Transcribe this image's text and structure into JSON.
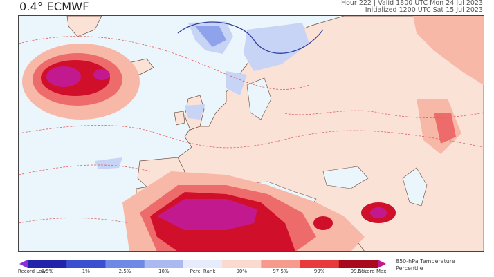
{
  "header": {
    "model_title": "0.4° ECMWF",
    "valid_line": "Hour 222 | Valid 1800 UTC Mon 24 Jul 2023",
    "init_line": "Initialized 1200 UTC Sat 15 Jul 2023"
  },
  "map": {
    "variable": "850-hPa Temperature Percentile",
    "colors": {
      "ocean_background": "#eaf6fc",
      "land_warm": "#fbe2d6",
      "anomaly_light": "#f8b8a8",
      "anomaly_mid": "#ee6b6b",
      "anomaly_high": "#d0102a",
      "anomaly_record": "#c21a8e",
      "cold_light": "#c7d4f5",
      "cold_mid": "#8ea3eb",
      "contour_warm": "#e06060",
      "contour_cold": "#3040a0",
      "coastline": "#6a4a3a"
    }
  },
  "legend": {
    "title_line1": "850-hPa Temperature",
    "title_line2": "Percentile",
    "bins": [
      {
        "label": "Record Low",
        "color": "#8b2fd8"
      },
      {
        "label": "0.5%",
        "color": "#2222aa"
      },
      {
        "label": "1%",
        "color": "#3a4fd0"
      },
      {
        "label": "2.5%",
        "color": "#6f8ae6"
      },
      {
        "label": "10%",
        "color": "#aab9f0"
      },
      {
        "label": "Perc. Rank",
        "color": "#e6ecfb"
      },
      {
        "label": "90%",
        "color": "#fbd9cf"
      },
      {
        "label": "97.5%",
        "color": "#f59a8c"
      },
      {
        "label": "99%",
        "color": "#e83a3a"
      },
      {
        "label": "99.5%",
        "color": "#a80a1e"
      },
      {
        "label": "Record Max",
        "color": "#c21a8e"
      }
    ]
  }
}
